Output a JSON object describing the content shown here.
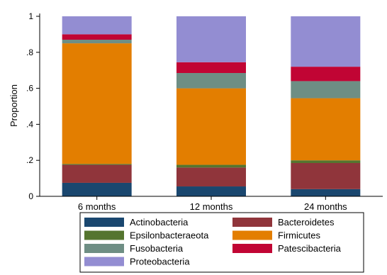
{
  "chart_data": {
    "type": "bar",
    "stacked": true,
    "ylabel": "Proportion",
    "xlabel": "",
    "ylim": [
      0,
      1
    ],
    "yticks": [
      0,
      0.2,
      0.4,
      0.6,
      0.8,
      1
    ],
    "ytick_labels": [
      "0",
      ".2",
      ".4",
      ".6",
      ".8",
      "1"
    ],
    "categories": [
      "6 months",
      "12 months",
      "24 months"
    ],
    "grid": false,
    "legend_position": "bottom",
    "series": [
      {
        "name": "Actinobacteria",
        "color": "#1a476f",
        "values": [
          0.075,
          0.055,
          0.04
        ]
      },
      {
        "name": "Bacteroidetes",
        "color": "#90353b",
        "values": [
          0.1,
          0.105,
          0.145
        ]
      },
      {
        "name": "Epsilonbacteraeota",
        "color": "#55752f",
        "values": [
          0.005,
          0.015,
          0.015
        ]
      },
      {
        "name": "Firmicutes",
        "color": "#e37e00",
        "values": [
          0.67,
          0.425,
          0.345
        ]
      },
      {
        "name": "Fusobacteria",
        "color": "#6e8e84",
        "values": [
          0.02,
          0.085,
          0.095
        ]
      },
      {
        "name": "Patescibacteria",
        "color": "#c10534",
        "values": [
          0.03,
          0.06,
          0.08
        ]
      },
      {
        "name": "Proteobacteria",
        "color": "#938dd2",
        "values": [
          0.1,
          0.255,
          0.28
        ]
      }
    ]
  }
}
